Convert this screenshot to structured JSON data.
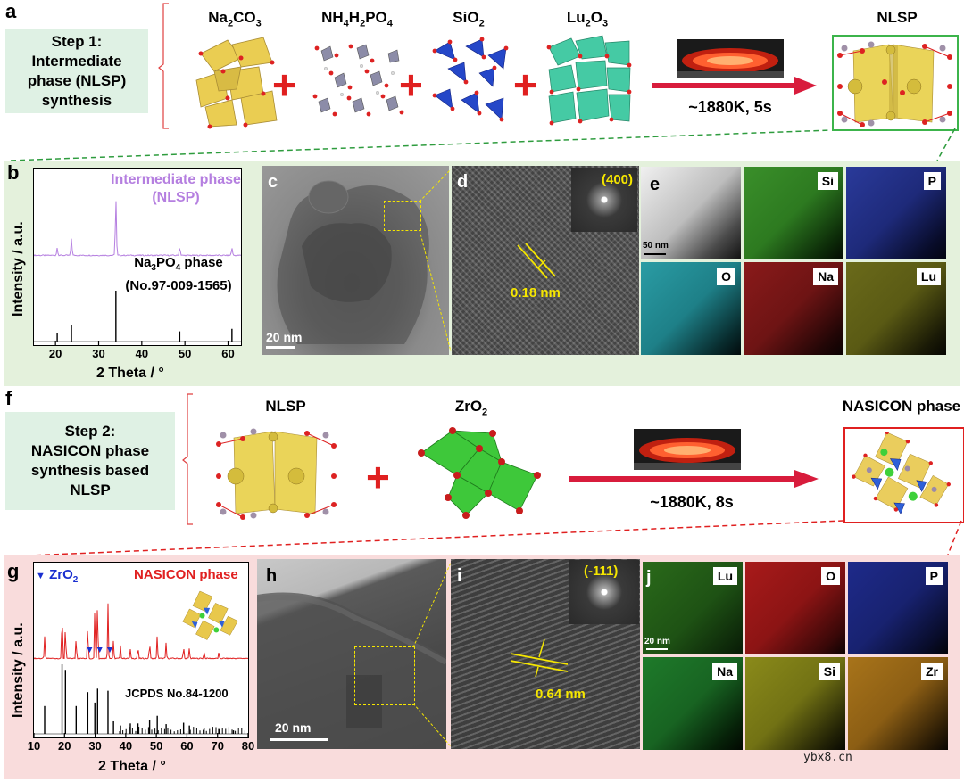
{
  "panel_letters": {
    "a": "a",
    "b": "b",
    "c": "c",
    "d": "d",
    "e": "e",
    "f": "f",
    "g": "g",
    "h": "h",
    "i": "i",
    "j": "j"
  },
  "step1": {
    "line1": "Step 1:",
    "line2": "Intermediate",
    "line3": "phase (NLSP)",
    "line4": "synthesis"
  },
  "step2": {
    "line1": "Step 2:",
    "line2": "NASICON phase",
    "line3": "synthesis based",
    "line4": "NLSP"
  },
  "reactants1": [
    "Na2CO3",
    "NH4H2PO4",
    "SiO2",
    "Lu2O3"
  ],
  "reactants1_display": {
    "na2co3": "Na",
    "na2co3_sub1": "2",
    "na2co3_rest": "CO",
    "na2co3_sub2": "3",
    "nh4": "NH",
    "nh4_sub1": "4",
    "nh4_mid": "H",
    "nh4_sub2": "2",
    "nh4_rest": "PO",
    "nh4_sub3": "4",
    "sio2": "SiO",
    "sio2_sub": "2",
    "lu2o3": "Lu",
    "lu2o3_sub1": "2",
    "lu2o3_rest": "O",
    "lu2o3_sub2": "3"
  },
  "product1": "NLSP",
  "arrow1": "~1880K, 5s",
  "arrow2": "~1880K, 8s",
  "reactants2": {
    "nlsp": "NLSP",
    "zro2": "ZrO",
    "zro2_sub": "2"
  },
  "product2": "NASICON phase",
  "panel_b": {
    "series_top_label_1": "Intermediate phase",
    "series_top_label_2": "(NLSP)",
    "ref_label_1a": "Na",
    "ref_label_1sub": "3",
    "ref_label_1b": "PO",
    "ref_label_1sub2": "4",
    "ref_label_1c": " phase",
    "ref_label_2": "(No.97-009-1565)",
    "ylabel": "Intensity / a.u.",
    "xlabel": "2 Theta / °",
    "xticks": [
      "20",
      "30",
      "40",
      "50",
      "60"
    ]
  },
  "panel_c": {
    "scalebar": "20 nm"
  },
  "panel_d": {
    "fft": "(400)",
    "spacing": "0.18 nm"
  },
  "panel_e": {
    "scalebar": "50 nm",
    "tiles": [
      "Si",
      "P",
      "O",
      "Na",
      "Lu"
    ]
  },
  "panel_g": {
    "legend_marker": "▼",
    "legend_label": "ZrO",
    "legend_sub": "2",
    "series_label": "NASICON phase",
    "ref_label": "JCPDS No.84-1200",
    "ylabel": "Intensity / a.u.",
    "xlabel": "2 Theta / °",
    "xticks": [
      "10",
      "20",
      "30",
      "40",
      "50",
      "60",
      "70",
      "80"
    ]
  },
  "panel_h": {
    "scalebar": "20 nm"
  },
  "panel_i": {
    "fft": "(-111)",
    "spacing": "0.64 nm"
  },
  "panel_j": {
    "scalebar": "20 nm",
    "tiles": [
      "Lu",
      "O",
      "P",
      "Na",
      "Si",
      "Zr"
    ]
  },
  "watermark": "ybx8.cn",
  "chart_data": [
    {
      "type": "line",
      "title": "",
      "xlabel": "2 Theta / °",
      "ylabel": "Intensity / a.u.",
      "xlim": [
        15,
        63
      ],
      "series": [
        {
          "name": "Intermediate phase (NLSP)",
          "peaks_x": [
            20.4,
            23.7,
            34.0,
            48.8,
            60.9
          ],
          "peaks_y": [
            8,
            18,
            60,
            9,
            8
          ],
          "color": "#b57fe0"
        },
        {
          "name": "Na3PO4 phase (No.97-009-1565)",
          "peaks_x": [
            20.4,
            23.7,
            34.0,
            48.8,
            60.9
          ],
          "peaks_y": [
            10,
            20,
            60,
            12,
            15
          ],
          "color": "#000000"
        }
      ]
    },
    {
      "type": "line",
      "title": "",
      "xlabel": "2 Theta / °",
      "ylabel": "Intensity / a.u.",
      "xlim": [
        10,
        80
      ],
      "series": [
        {
          "name": "NASICON phase",
          "peaks_x": [
            13.5,
            19.2,
            20.3,
            23.8,
            27.6,
            29.9,
            30.8,
            34.2,
            36.0,
            38.3,
            41.5,
            44.0,
            47.8,
            50.3,
            53.2,
            58.9,
            60.8,
            65.6,
            70.4
          ],
          "peaks_y": [
            25,
            60,
            38,
            25,
            42,
            58,
            70,
            62,
            20,
            15,
            10,
            14,
            20,
            26,
            18,
            14,
            12,
            8,
            6
          ],
          "color": "#e02020"
        },
        {
          "name": "JCPDS No.84-1200",
          "peaks_x": [
            13.5,
            19.2,
            20.3,
            23.8,
            27.6,
            29.9,
            30.8,
            34.2,
            36.0,
            38.3,
            41.5,
            44.0,
            47.8,
            50.3,
            53.2,
            58.9,
            60.8,
            65.6,
            70.4,
            75.2
          ],
          "peaks_y": [
            40,
            100,
            92,
            40,
            60,
            45,
            65,
            62,
            18,
            12,
            15,
            15,
            20,
            26,
            14,
            16,
            12,
            8,
            7,
            5
          ],
          "color": "#000000"
        },
        {
          "name": "ZrO2",
          "peaks_x": [
            28.2,
            31.5,
            34.8
          ],
          "color": "#1a2fd0"
        }
      ]
    }
  ]
}
